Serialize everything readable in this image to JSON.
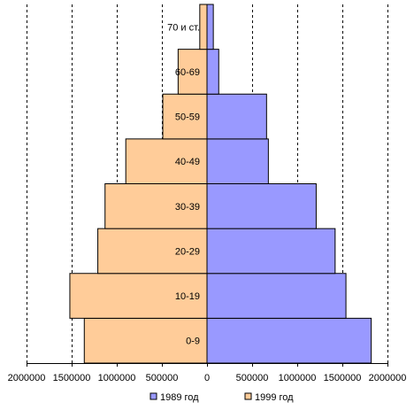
{
  "chart_data": {
    "type": "bar",
    "orientation": "horizontal",
    "layout": "population-pyramid",
    "categories": [
      "0-9",
      "10-19",
      "20-29",
      "30-39",
      "40-49",
      "50-59",
      "60-69",
      "70 и ст."
    ],
    "series": [
      {
        "name": "1989 год",
        "color": "#9999ff",
        "side": "right",
        "values": [
          1820000,
          1540000,
          1420000,
          1210000,
          680000,
          660000,
          130000,
          70000
        ]
      },
      {
        "name": "1999 год",
        "color": "#ffcc99",
        "side": "left",
        "values": [
          1360000,
          1520000,
          1210000,
          1130000,
          900000,
          490000,
          320000,
          80000
        ]
      }
    ],
    "xlim": [
      -2000000,
      2000000
    ],
    "x_ticks": [
      "2000000",
      "1500000",
      "1000000",
      "500000",
      "0",
      "500000",
      "1000000",
      "1500000",
      "2000000"
    ],
    "grid": "vertical-dashed",
    "legend_position": "bottom",
    "title": "",
    "xlabel": "",
    "ylabel": ""
  }
}
